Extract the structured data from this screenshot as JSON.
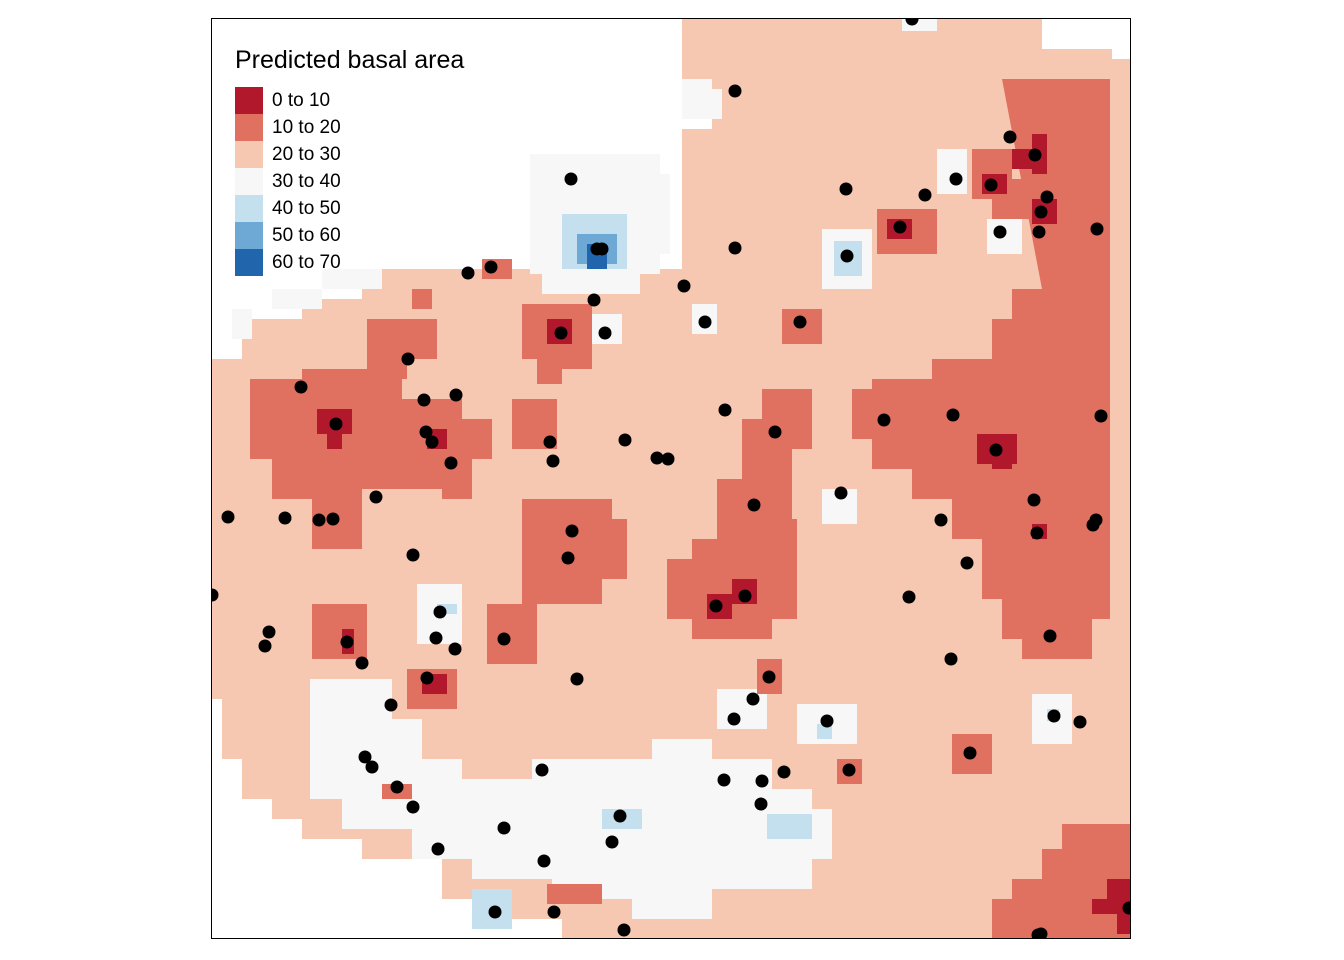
{
  "map": {
    "legend": {
      "title": "Predicted basal area",
      "classes": [
        {
          "label": "0 to 10",
          "color": "#b2182b"
        },
        {
          "label": "10 to 20",
          "color": "#e07060"
        },
        {
          "label": "20 to 30",
          "color": "#f7c8b1"
        },
        {
          "label": "30 to 40",
          "color": "#f7f7f7"
        },
        {
          "label": "40 to 50",
          "color": "#c4dfed"
        },
        {
          "label": "50 to 60",
          "color": "#6ea8d4"
        },
        {
          "label": "60 to 70",
          "color": "#2166ac"
        }
      ]
    },
    "colors": {
      "background": "#ffffff",
      "frame": "#000000",
      "points": "#000000"
    }
  }
}
